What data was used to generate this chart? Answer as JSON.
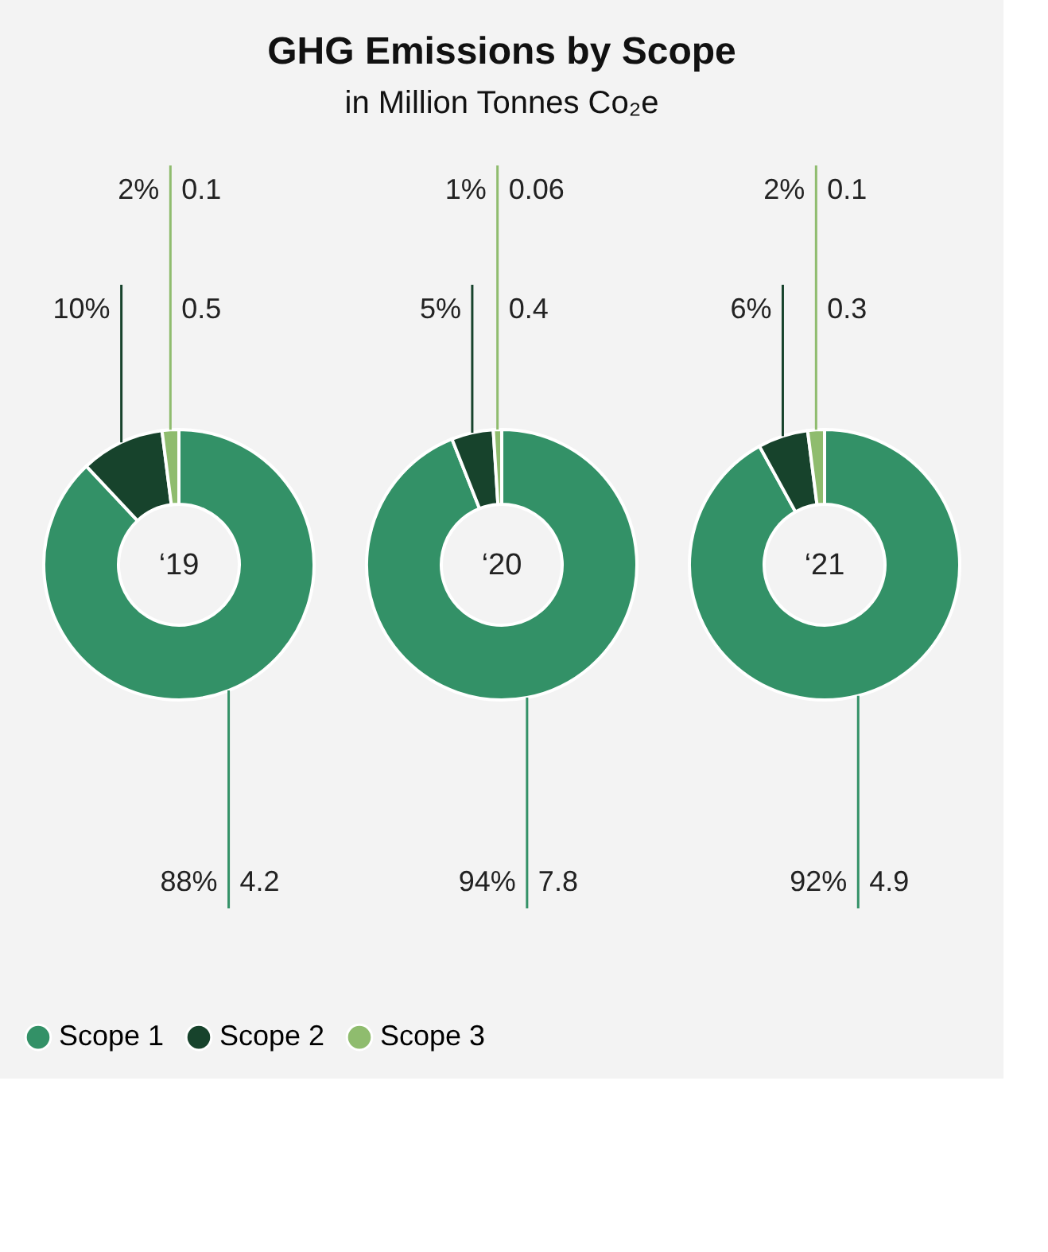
{
  "chart_data": [
    {
      "type": "other",
      "title": "GHG Emissions by Scope",
      "subtitle": "in Million Tonnes Co₂e"
    },
    {
      "type": "donut",
      "categories": [
        "Scope 1",
        "Scope 2",
        "Scope 3"
      ],
      "values": [
        88,
        10,
        2
      ],
      "colors": [
        "#339167",
        "#17432c",
        "#8fbc6e"
      ],
      "value_labels": [
        "88%",
        "10%",
        "2%"
      ],
      "legend": "bottom",
      "annotations": [
        "‘19",
        {
          "text": "4.2",
          "x": "Scope 1"
        },
        {
          "text": "0.5",
          "x": "Scope 2"
        },
        {
          "text": "0.1",
          "x": "Scope 3"
        }
      ]
    },
    {
      "type": "donut",
      "categories": [
        null,
        null,
        null
      ],
      "values": [
        94,
        5,
        1
      ],
      "colors": [
        "#339167",
        "#17432c",
        "#8fbc6e"
      ],
      "value_labels": [
        "94%",
        "5%",
        "1%"
      ],
      "annotations": [
        "‘20",
        {
          "text": "7.8"
        },
        {
          "text": "0.4"
        },
        {
          "text": "0.06"
        }
      ]
    },
    {
      "type": "donut",
      "categories": [
        null,
        null,
        null
      ],
      "values": [
        92,
        6,
        2
      ],
      "colors": [
        "#339167",
        "#17432c",
        "#8fbc6e"
      ],
      "value_labels": [
        "92%",
        "6%",
        "2%"
      ],
      "annotations": [
        "‘21",
        {
          "text": "4.9"
        },
        {
          "text": "0.3"
        },
        {
          "text": "0.1"
        }
      ]
    }
  ]
}
